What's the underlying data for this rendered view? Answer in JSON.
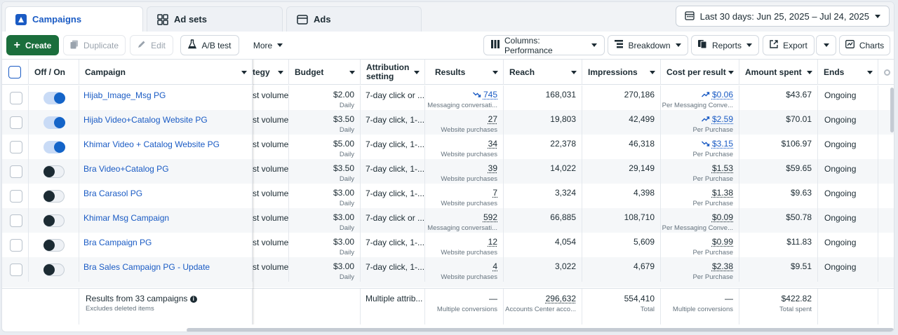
{
  "tabs": [
    {
      "label": "Campaigns",
      "icon": "campaigns-icon"
    },
    {
      "label": "Ad sets",
      "icon": "adsets-icon"
    },
    {
      "label": "Ads",
      "icon": "ads-icon"
    }
  ],
  "date_range": "Last 30 days: Jun 25, 2025 – Jul 24, 2025",
  "toolbar": {
    "create": "Create",
    "duplicate": "Duplicate",
    "edit": "Edit",
    "ab_test": "A/B test",
    "more": "More",
    "columns": "Columns: Performance",
    "breakdown": "Breakdown",
    "reports": "Reports",
    "export": "Export",
    "charts": "Charts"
  },
  "headers": {
    "offon": "Off / On",
    "campaign": "Campaign",
    "strategy": "tegy",
    "budget": "Budget",
    "attribution": "Attribution setting",
    "results": "Results",
    "reach": "Reach",
    "impressions": "Impressions",
    "cpr": "Cost per result",
    "spent": "Amount spent",
    "ends": "Ends"
  },
  "rows": [
    {
      "on": true,
      "name": "Hijab_Image_Msg PG",
      "strategy": "st volume",
      "budget": "$2.00",
      "budget_sub": "Daily",
      "attribution": "7-day click or ...",
      "results": "745",
      "results_sub": "Messaging conversati...",
      "results_trend": "down",
      "reach": "168,031",
      "impressions": "270,186",
      "cpr": "$0.06",
      "cpr_sub": "Per Messaging Conve...",
      "cpr_trend": "up",
      "spent": "$43.67",
      "ends": "Ongoing"
    },
    {
      "on": true,
      "name": "Hijab Video+Catalog Website PG",
      "strategy": "st volume",
      "budget": "$3.50",
      "budget_sub": "Daily",
      "attribution": "7-day click, 1-...",
      "results": "27",
      "results_sub": "Website purchases",
      "results_trend": "",
      "reach": "19,803",
      "impressions": "42,499",
      "cpr": "$2.59",
      "cpr_sub": "Per Purchase",
      "cpr_trend": "up",
      "spent": "$70.01",
      "ends": "Ongoing"
    },
    {
      "on": true,
      "name": "Khimar Video + Catalog Website PG",
      "strategy": "st volume",
      "budget": "$5.00",
      "budget_sub": "Daily",
      "attribution": "7-day click, 1-...",
      "results": "34",
      "results_sub": "Website purchases",
      "results_trend": "",
      "reach": "22,378",
      "impressions": "46,318",
      "cpr": "$3.15",
      "cpr_sub": "Per Purchase",
      "cpr_trend": "down",
      "spent": "$106.97",
      "ends": "Ongoing"
    },
    {
      "on": false,
      "name": "Bra Video+Catalog PG",
      "strategy": "st volume",
      "budget": "$3.50",
      "budget_sub": "Daily",
      "attribution": "7-day click, 1-...",
      "results": "39",
      "results_sub": "Website purchases",
      "results_trend": "",
      "reach": "14,022",
      "impressions": "29,149",
      "cpr": "$1.53",
      "cpr_sub": "Per Purchase",
      "cpr_trend": "",
      "spent": "$59.65",
      "ends": "Ongoing"
    },
    {
      "on": false,
      "name": "Bra Carasol PG",
      "strategy": "st volume",
      "budget": "$3.00",
      "budget_sub": "Daily",
      "attribution": "7-day click, 1-...",
      "results": "7",
      "results_sub": "Website purchases",
      "results_trend": "",
      "reach": "3,324",
      "impressions": "4,398",
      "cpr": "$1.38",
      "cpr_sub": "Per Purchase",
      "cpr_trend": "",
      "spent": "$9.63",
      "ends": "Ongoing"
    },
    {
      "on": false,
      "name": "Khimar Msg Campaign",
      "strategy": "st volume",
      "budget": "$3.00",
      "budget_sub": "Daily",
      "attribution": "7-day click or ...",
      "results": "592",
      "results_sub": "Messaging conversati...",
      "results_trend": "",
      "reach": "66,885",
      "impressions": "108,710",
      "cpr": "$0.09",
      "cpr_sub": "Per Messaging Conve...",
      "cpr_trend": "",
      "spent": "$50.78",
      "ends": "Ongoing"
    },
    {
      "on": false,
      "name": "Bra Campaign PG",
      "strategy": "st volume",
      "budget": "$3.00",
      "budget_sub": "Daily",
      "attribution": "7-day click, 1-...",
      "results": "12",
      "results_sub": "Website purchases",
      "results_trend": "",
      "reach": "4,054",
      "impressions": "5,609",
      "cpr": "$0.99",
      "cpr_sub": "Per Purchase",
      "cpr_trend": "",
      "spent": "$11.83",
      "ends": "Ongoing"
    },
    {
      "on": false,
      "name": "Bra Sales Campaign PG - Update",
      "strategy": "st volume",
      "budget": "$3.00",
      "budget_sub": "Daily",
      "attribution": "7-day click, 1-...",
      "results": "4",
      "results_sub": "Website purchases",
      "results_trend": "",
      "reach": "3,022",
      "impressions": "4,679",
      "cpr": "$2.38",
      "cpr_sub": "Per Purchase",
      "cpr_trend": "",
      "spent": "$9.51",
      "ends": "Ongoing"
    }
  ],
  "footer": {
    "title": "Results from 33 campaigns",
    "subtitle": "Excludes deleted items",
    "attribution": "Multiple attrib...",
    "results": "—",
    "results_sub": "Multiple conversions",
    "reach": "296,632",
    "reach_sub": "Accounts Center acco...",
    "impressions": "554,410",
    "impressions_sub": "Total",
    "cpr": "—",
    "cpr_sub": "Multiple conversions",
    "spent": "$422.82",
    "spent_sub": "Total spent"
  },
  "colors": {
    "accent": "#1a5bc4",
    "create": "#1b6e3c",
    "toggle_on": "#1464c8"
  }
}
